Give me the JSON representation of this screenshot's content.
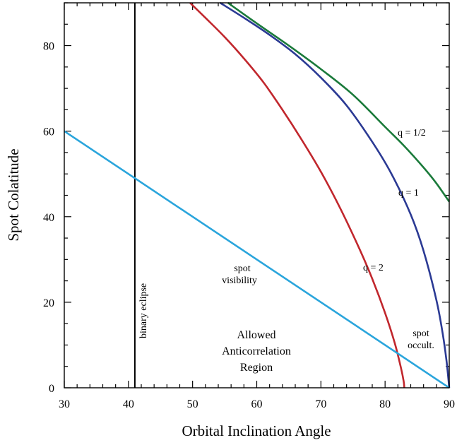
{
  "chart_data": {
    "type": "line",
    "xlabel": "Orbital Inclination Angle",
    "ylabel": "Spot Colatitude",
    "xlim": [
      30,
      90
    ],
    "ylim": [
      0,
      90
    ],
    "xticks": [
      "30",
      "40",
      "50",
      "60",
      "70",
      "80",
      "90"
    ],
    "yticks": [
      "0",
      "20",
      "40",
      "60",
      "80"
    ],
    "grid": false,
    "colors": {
      "q_half": "#1a7a3a",
      "q_one": "#2b3a94",
      "q_two": "#c1272d",
      "spot_visibility": "#2aa5dc",
      "binary_eclipse": "#000000"
    },
    "series": [
      {
        "name": "q = 1/2",
        "color_key": "q_half",
        "x": [
          55.5,
          60,
          65,
          70,
          75,
          80,
          83,
          86,
          88,
          90
        ],
        "y": [
          90,
          85.2,
          80.0,
          74.5,
          68.5,
          61.0,
          56.5,
          51.5,
          47.8,
          43.5
        ]
      },
      {
        "name": "q = 1",
        "color_key": "q_one",
        "x": [
          54.3,
          58,
          62,
          66,
          70,
          74,
          78,
          81,
          84,
          86,
          88,
          89,
          89.6,
          90
        ],
        "y": [
          90,
          86.5,
          82.5,
          78.0,
          72.5,
          66.0,
          57.5,
          50.0,
          40.5,
          32.0,
          20.5,
          12.5,
          6.0,
          0
        ]
      },
      {
        "name": "q = 2",
        "color_key": "q_two",
        "x": [
          49.6,
          52,
          55,
          58,
          61,
          64,
          67,
          70,
          73,
          76,
          78,
          80,
          81.5,
          82.5,
          82.9,
          83.0
        ],
        "y": [
          90,
          86.5,
          82.0,
          77.0,
          71.5,
          65.0,
          58.0,
          50.5,
          42.0,
          32.5,
          25.5,
          17.5,
          10.5,
          4.5,
          1.5,
          0
        ]
      },
      {
        "name": "spot visibility",
        "color_key": "spot_visibility",
        "x": [
          30,
          90
        ],
        "y": [
          60,
          0
        ]
      }
    ],
    "vlines": [
      {
        "name": "binary eclipse",
        "x": 41,
        "color_key": "binary_eclipse"
      }
    ],
    "annotations": {
      "q_half": "q = 1/2",
      "q_one": "q = 1",
      "q_two": "q = 2",
      "binary_eclipse": "binary eclipse",
      "spot_visibility_1": "spot",
      "spot_visibility_2": "visibility",
      "spot_occult_1": "spot",
      "spot_occult_2": "occult.",
      "region_1": "Allowed",
      "region_2": "Anticorrelation",
      "region_3": "Region"
    }
  }
}
